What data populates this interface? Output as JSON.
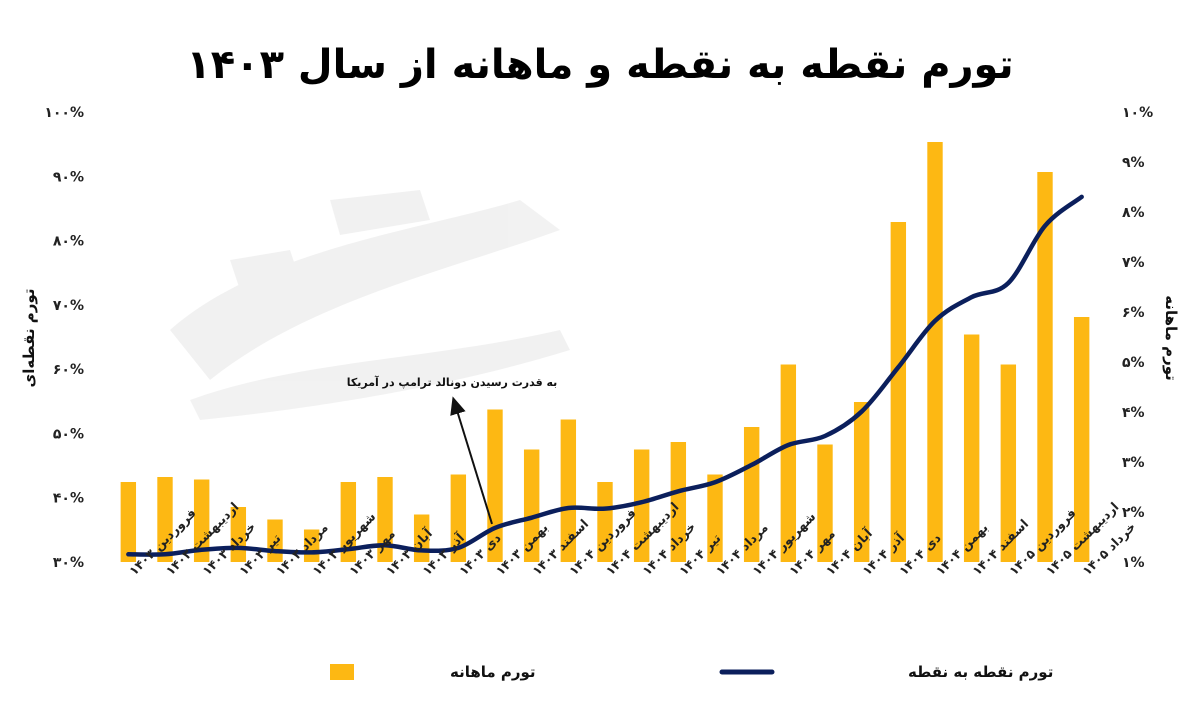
{
  "chart_data": {
    "type": "bar+line",
    "title": "تورم نقطه به نقطه و ماهانه از سال ۱۴۰۳",
    "categories": [
      "فروردین ۱۴۰۳",
      "اردیبهشت ۱۴۰۳",
      "خرداد ۱۴۰۳",
      "تیر ۱۴۰۳",
      "مرداد ۱۴۰۳",
      "شهریور ۱۴۰۳",
      "مهر ۱۴۰۳",
      "آبان ۱۴۰۳",
      "آذر ۱۴۰۳",
      "دی ۱۴۰۳",
      "بهمن ۱۴۰۳",
      "اسفند ۱۴۰۳",
      "فروردین ۱۴۰۴",
      "اردیبهشت ۱۴۰۴",
      "خرداد ۱۴۰۴",
      "تیر ۱۴۰۴",
      "مرداد ۱۴۰۴",
      "شهریور ۱۴۰۴",
      "مهر ۱۴۰۴",
      "آبان ۱۴۰۴",
      "آذر ۱۴۰۴",
      "دی ۱۴۰۴",
      "بهمن ۱۴۰۴",
      "اسفند ۱۴۰۴",
      "فروردین ۱۴۰۵",
      "اردیبهشت ۱۴۰۵",
      "خرداد ۱۴۰۵"
    ],
    "series": [
      {
        "name": "تورم ماهانه",
        "axis": "right",
        "kind": "bar",
        "color": "#FDB813",
        "values": [
          2.6,
          2.7,
          2.65,
          2.1,
          1.85,
          1.65,
          2.6,
          2.7,
          1.95,
          2.75,
          4.05,
          3.25,
          3.85,
          2.6,
          3.25,
          3.4,
          2.75,
          3.7,
          4.95,
          3.35,
          4.2,
          7.8,
          9.4,
          5.55,
          4.95,
          8.8,
          5.9
        ]
      },
      {
        "name": "تورم نقطه به نقطه",
        "axis": "left",
        "kind": "line",
        "color": "#0B1F5C",
        "values": [
          31.2,
          31.2,
          31.9,
          32.2,
          31.7,
          31.5,
          32.0,
          32.6,
          31.8,
          32.2,
          35.3,
          36.9,
          38.4,
          38.3,
          39.3,
          41.0,
          42.4,
          45.1,
          48.2,
          49.6,
          53.4,
          60.3,
          67.5,
          71.2,
          73.4,
          82.3,
          86.8
        ]
      }
    ],
    "y_left": {
      "label": "تورم نقطه‌ای",
      "range": [
        30,
        100
      ],
      "ticks": [
        30,
        40,
        50,
        60,
        70,
        80,
        90,
        100
      ],
      "tick_labels": [
        "۳۰%",
        "۴۰%",
        "۵۰%",
        "۶۰%",
        "۷۰%",
        "۸۰%",
        "۹۰%",
        "۱۰۰%"
      ]
    },
    "y_right": {
      "label": "تورم ماهانه",
      "range": [
        1,
        10
      ],
      "ticks": [
        1,
        2,
        3,
        4,
        5,
        6,
        7,
        8,
        9,
        10
      ],
      "tick_labels": [
        "۱%",
        "۲%",
        "۳%",
        "۴%",
        "۵%",
        "۶%",
        "۷%",
        "۸%",
        "۹%",
        "۱۰%"
      ]
    },
    "annotation": {
      "text": "به قدرت رسیدن دونالد ترامپ در آمریکا",
      "category_index": 10
    },
    "grid": false,
    "legend_position": "bottom",
    "legend": [
      {
        "label": "تورم ماهانه",
        "kind": "bar",
        "color": "#FDB813"
      },
      {
        "label": "تورم نقطه به نقطه",
        "kind": "line",
        "color": "#0B1F5C"
      }
    ]
  }
}
